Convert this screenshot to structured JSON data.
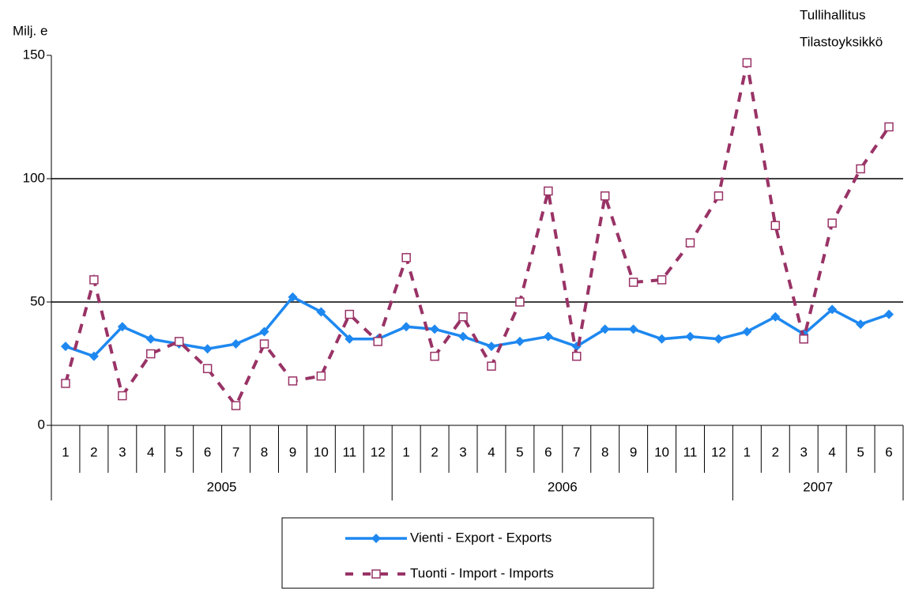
{
  "chart_data": {
    "type": "line",
    "y_axis_label": "Milj. e",
    "source": [
      "Tullihallitus",
      "Tilastoyksikkö"
    ],
    "category_groups": [
      {
        "label": "2005",
        "categories": [
          "1",
          "2",
          "3",
          "4",
          "5",
          "6",
          "7",
          "8",
          "9",
          "10",
          "11",
          "12"
        ]
      },
      {
        "label": "2006",
        "categories": [
          "1",
          "2",
          "3",
          "4",
          "5",
          "6",
          "7",
          "8",
          "9",
          "10",
          "11",
          "12"
        ]
      },
      {
        "label": "2007",
        "categories": [
          "1",
          "2",
          "3",
          "4",
          "5",
          "6"
        ]
      }
    ],
    "series": [
      {
        "name": "Vienti - Export - Exports",
        "color": "#1e88f0",
        "marker": "diamond",
        "dash": false,
        "values": [
          32,
          28,
          40,
          35,
          33,
          31,
          33,
          38,
          52,
          46,
          35,
          35,
          40,
          39,
          36,
          32,
          34,
          36,
          32,
          39,
          39,
          35,
          36,
          35,
          38,
          44,
          37,
          47,
          41,
          45
        ]
      },
      {
        "name": "Tuonti - Import - Imports",
        "color": "#993366",
        "marker": "square",
        "dash": true,
        "values": [
          17,
          59,
          12,
          29,
          34,
          23,
          8,
          33,
          18,
          20,
          45,
          34,
          68,
          28,
          44,
          24,
          50,
          95,
          28,
          93,
          58,
          59,
          74,
          93,
          147,
          81,
          35,
          82,
          104,
          121
        ]
      }
    ],
    "ylim": [
      0,
      150
    ],
    "yticks": [
      0,
      50,
      100,
      150
    ],
    "grid": true
  }
}
